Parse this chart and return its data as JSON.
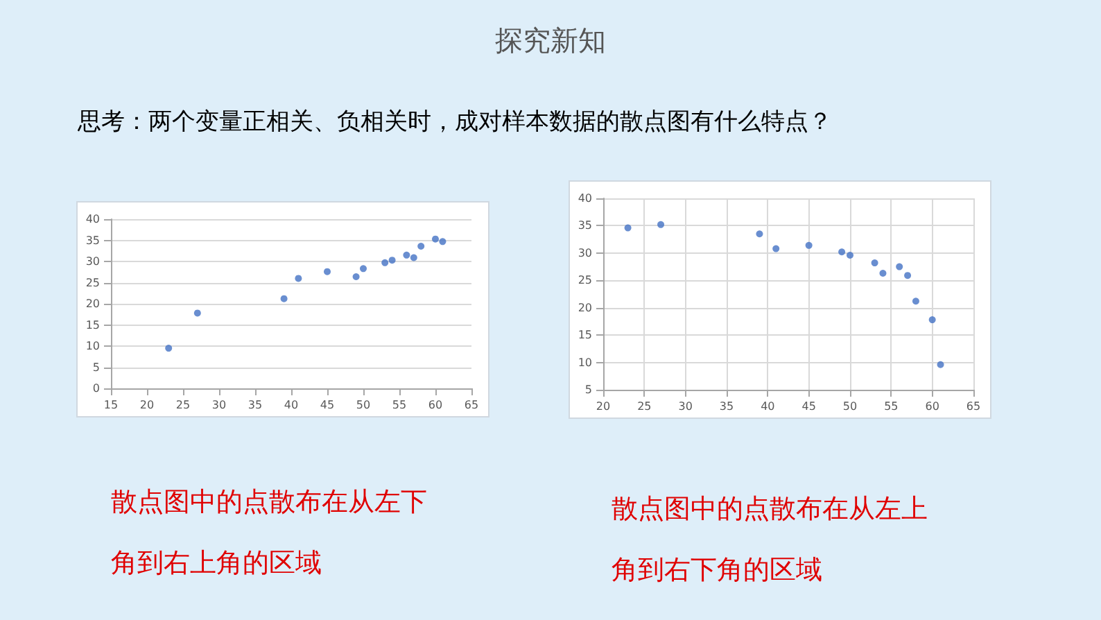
{
  "chart_data": [
    {
      "type": "other",
      "title": "探究新知",
      "subtitle": "思考：两个变量正相关、负相关时，成对样本数据的散点图有什么特点？"
    },
    {
      "type": "scatter",
      "annotations": [
        "散点图中的点散布在从左下角到右上角的区域"
      ],
      "color": "#4472c4",
      "marker": "circle",
      "grid": "y",
      "x": [
        23,
        27,
        39,
        41,
        45,
        49,
        50,
        53,
        54,
        56,
        57,
        58,
        60,
        61
      ],
      "values": [
        9.5,
        17.8,
        21.2,
        26,
        27.6,
        26.4,
        28.3,
        29.7,
        30.3,
        31.5,
        30.9,
        33.6,
        35.3,
        34.7
      ],
      "xlim": [
        15,
        65
      ],
      "xticks": [
        15,
        20,
        25,
        30,
        35,
        40,
        45,
        50,
        55,
        60,
        65
      ],
      "ylim": [
        0,
        40
      ],
      "yticks": [
        0,
        5,
        10,
        15,
        20,
        25,
        30,
        35,
        40
      ]
    },
    {
      "type": "scatter",
      "annotations": [
        "散点图中的点散布在从左上角到右下角的区域"
      ],
      "color": "#4472c4",
      "marker": "circle",
      "grid": true,
      "x": [
        23,
        27,
        39,
        41,
        45,
        49,
        50,
        53,
        54,
        56,
        57,
        58,
        60,
        61
      ],
      "values": [
        34.6,
        35.2,
        33.5,
        30.8,
        31.4,
        30.2,
        29.6,
        28.2,
        26.3,
        27.5,
        25.9,
        21.2,
        17.8,
        9.6
      ],
      "xlim": [
        20,
        65
      ],
      "xticks": [
        20,
        25,
        30,
        35,
        40,
        45,
        50,
        55,
        60,
        65
      ],
      "ylim": [
        5,
        40
      ],
      "yticks": [
        5,
        10,
        15,
        20,
        25,
        30,
        35,
        40
      ]
    }
  ]
}
